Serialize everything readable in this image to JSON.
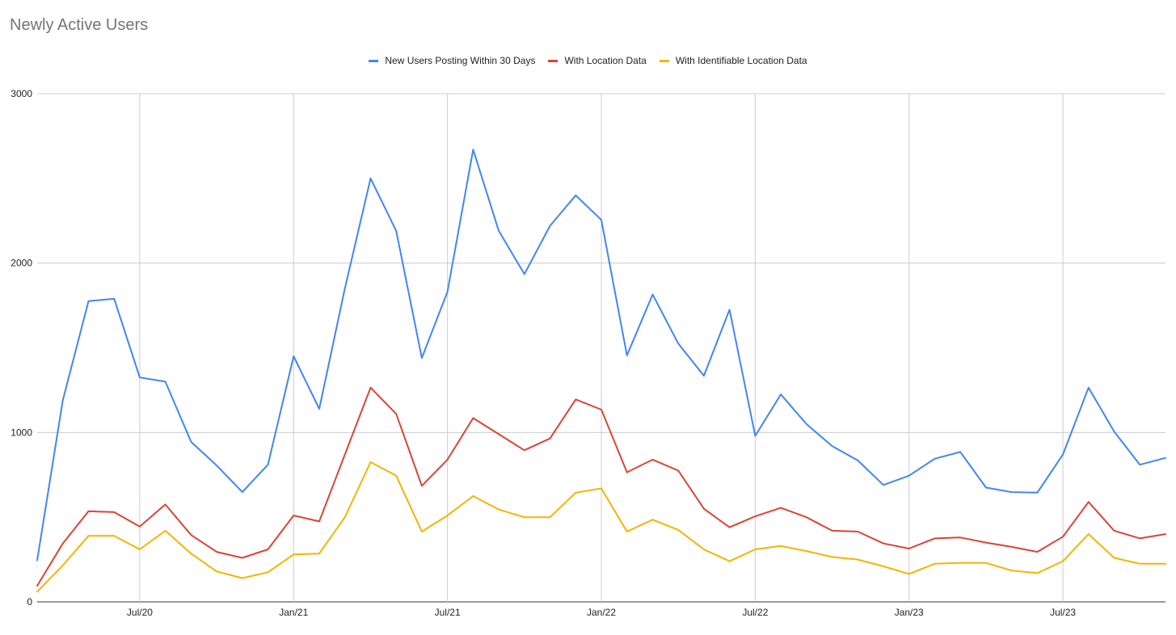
{
  "chart_data": {
    "type": "line",
    "title": "Newly Active Users",
    "xlabel": "",
    "ylabel": "",
    "ylim": [
      0,
      3000
    ],
    "yticks": [
      "0",
      "1000",
      "2000",
      "3000"
    ],
    "xticks": [
      {
        "label": "Jul/20",
        "x": "2020-07"
      },
      {
        "label": "Jan/21",
        "x": "2021-01"
      },
      {
        "label": "Jul/21",
        "x": "2021-07"
      },
      {
        "label": "Jan/22",
        "x": "2022-01"
      },
      {
        "label": "Jul/22",
        "x": "2022-07"
      },
      {
        "label": "Jan/23",
        "x": "2023-01"
      },
      {
        "label": "Jul/23",
        "x": "2023-07"
      }
    ],
    "x": [
      "2020-03",
      "2020-04",
      "2020-05",
      "2020-06",
      "2020-07",
      "2020-08",
      "2020-09",
      "2020-10",
      "2020-11",
      "2020-12",
      "2021-01",
      "2021-02",
      "2021-03",
      "2021-04",
      "2021-05",
      "2021-06",
      "2021-07",
      "2021-08",
      "2021-09",
      "2021-10",
      "2021-11",
      "2021-12",
      "2022-01",
      "2022-02",
      "2022-03",
      "2022-04",
      "2022-05",
      "2022-06",
      "2022-07",
      "2022-08",
      "2022-09",
      "2022-10",
      "2022-11",
      "2022-12",
      "2023-01",
      "2023-02",
      "2023-03",
      "2023-04",
      "2023-05",
      "2023-06",
      "2023-07",
      "2023-08",
      "2023-09",
      "2023-10",
      "2023-11"
    ],
    "series": [
      {
        "name": "New Users Posting Within 30 Days",
        "color": "#4285f4",
        "values": [
          245,
          1190,
          1775,
          1790,
          1325,
          1300,
          945,
          805,
          648,
          810,
          1450,
          1140,
          1850,
          2500,
          2190,
          1440,
          1830,
          2670,
          2190,
          1935,
          2220,
          2400,
          2255,
          1455,
          1815,
          1525,
          1335,
          1725,
          980,
          1225,
          1050,
          920,
          835,
          690,
          745,
          845,
          885,
          675,
          648,
          645,
          870,
          1265,
          1005,
          810,
          850
        ]
      },
      {
        "name": "With Location Data",
        "color": "#db4437",
        "values": [
          95,
          345,
          535,
          530,
          445,
          575,
          395,
          295,
          260,
          310,
          510,
          475,
          870,
          1265,
          1110,
          685,
          840,
          1085,
          990,
          895,
          965,
          1195,
          1135,
          765,
          840,
          775,
          550,
          440,
          505,
          555,
          500,
          420,
          415,
          345,
          315,
          375,
          380,
          350,
          325,
          295,
          385,
          590,
          420,
          375,
          400
        ]
      },
      {
        "name": "With Identifiable Location Data",
        "color": "#f4b400",
        "values": [
          60,
          215,
          390,
          390,
          310,
          420,
          285,
          180,
          140,
          175,
          280,
          285,
          500,
          825,
          745,
          415,
          510,
          625,
          545,
          500,
          500,
          645,
          670,
          415,
          485,
          425,
          310,
          240,
          310,
          330,
          300,
          265,
          250,
          210,
          165,
          225,
          230,
          230,
          185,
          170,
          240,
          400,
          260,
          225,
          225
        ]
      }
    ],
    "grid": true,
    "legend": "top"
  }
}
